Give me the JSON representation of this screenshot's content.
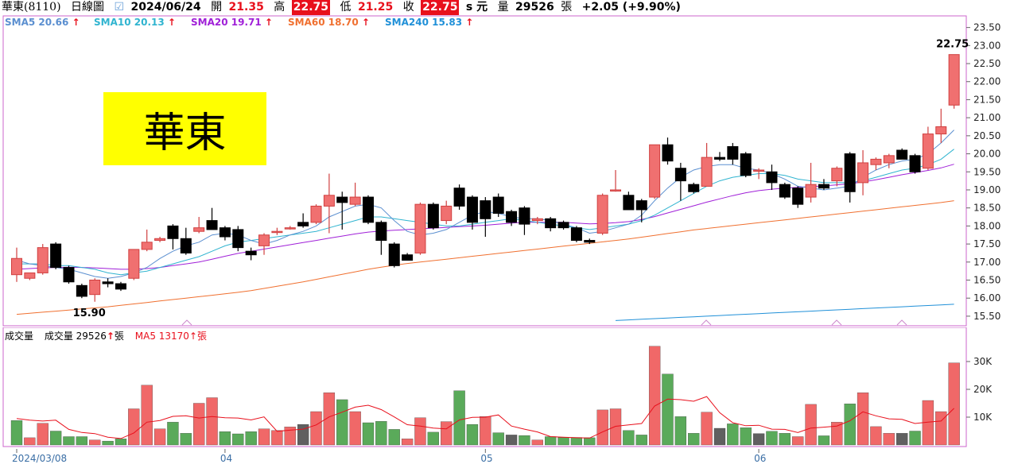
{
  "header": {
    "stock_name": "華東(8110)",
    "chart_type": "日線圖",
    "date": "2024/06/24",
    "open_label": "開",
    "open": "21.35",
    "high_label": "高",
    "high": "22.75",
    "low_label": "低",
    "low": "21.25",
    "close_label": "收",
    "close": "22.75",
    "currency": "s 元",
    "volume_label": "量",
    "volume": "29526",
    "volume_unit": "張",
    "change": "+2.05 (+9.90%)"
  },
  "tag": {
    "text": "華東"
  },
  "sma_legend": [
    {
      "label": "SMA5 20.66",
      "color": "#5b8fd0"
    },
    {
      "label": "SMA10 20.13",
      "color": "#30b4d0"
    },
    {
      "label": "SMA20 19.71",
      "color": "#a020d8"
    },
    {
      "label": "SMA60 18.70",
      "color": "#f07030"
    },
    {
      "label": "SMA240 15.83",
      "color": "#2090d8"
    }
  ],
  "volume_legend": {
    "title": "成交量",
    "volume": "成交量 29526",
    "volume_unit": "張",
    "ma5": "MA5 13170",
    "ma5_unit": "張"
  },
  "colors": {
    "up": "#f07070",
    "up_edge": "#d04040",
    "down": "#000000",
    "vol_up": "#f06868",
    "vol_down": "#5aaa5a",
    "vol_flat": "#606060",
    "frame": "#cc66cc"
  },
  "annotations": {
    "high_label": "22.75",
    "low_label": "15.90"
  },
  "chart_data": [
    {
      "type": "candlestick",
      "title": "華東(8110) 日線圖",
      "xlabel": "",
      "ylabel": "",
      "ylim": [
        15.3,
        23.8
      ],
      "y_ticks": [
        "15.50",
        "16.00",
        "16.50",
        "17.00",
        "17.50",
        "18.00",
        "18.50",
        "19.00",
        "19.50",
        "20.00",
        "20.50",
        "21.00",
        "21.50",
        "22.00",
        "22.50",
        "23.00",
        "23.50"
      ],
      "x_tick_labels": [
        {
          "index": 0,
          "label": "2024/03/08"
        },
        {
          "index": 16,
          "label": "04"
        },
        {
          "index": 36,
          "label": "05"
        },
        {
          "index": 57,
          "label": "06"
        }
      ],
      "ohlc": [
        [
          16.65,
          17.4,
          16.45,
          17.1
        ],
        [
          16.55,
          16.7,
          16.5,
          16.7
        ],
        [
          16.7,
          17.5,
          16.65,
          17.4
        ],
        [
          17.5,
          17.55,
          16.8,
          16.85
        ],
        [
          16.85,
          16.9,
          16.4,
          16.45
        ],
        [
          16.35,
          16.4,
          16.0,
          16.05
        ],
        [
          16.1,
          16.55,
          15.9,
          16.5
        ],
        [
          16.45,
          16.55,
          16.3,
          16.4
        ],
        [
          16.4,
          16.45,
          16.2,
          16.25
        ],
        [
          16.55,
          17.35,
          16.5,
          17.35
        ],
        [
          17.35,
          17.9,
          17.3,
          17.55
        ],
        [
          17.6,
          17.7,
          17.55,
          17.65
        ],
        [
          18.0,
          18.05,
          17.35,
          17.65
        ],
        [
          17.65,
          17.95,
          17.2,
          17.25
        ],
        [
          17.85,
          18.25,
          17.8,
          17.95
        ],
        [
          18.15,
          18.5,
          17.9,
          17.9
        ],
        [
          17.95,
          18.0,
          17.6,
          17.7
        ],
        [
          17.9,
          18.0,
          17.3,
          17.4
        ],
        [
          17.3,
          17.4,
          17.05,
          17.2
        ],
        [
          17.45,
          17.8,
          17.2,
          17.75
        ],
        [
          17.85,
          17.95,
          17.75,
          17.85
        ],
        [
          17.95,
          18.0,
          17.9,
          17.95
        ],
        [
          18.1,
          18.35,
          17.95,
          18.0
        ],
        [
          18.1,
          18.6,
          18.05,
          18.55
        ],
        [
          18.55,
          19.45,
          17.8,
          18.85
        ],
        [
          18.8,
          18.95,
          17.9,
          18.65
        ],
        [
          18.6,
          19.2,
          18.55,
          18.8
        ],
        [
          18.8,
          18.85,
          18.05,
          18.1
        ],
        [
          18.1,
          18.15,
          17.2,
          17.6
        ],
        [
          17.5,
          17.55,
          16.85,
          16.9
        ],
        [
          17.2,
          17.25,
          17.05,
          17.05
        ],
        [
          17.25,
          18.65,
          17.2,
          18.6
        ],
        [
          18.6,
          18.65,
          17.9,
          17.95
        ],
        [
          18.15,
          18.7,
          18.05,
          18.55
        ],
        [
          19.05,
          19.15,
          18.45,
          18.55
        ],
        [
          18.8,
          18.85,
          17.9,
          18.1
        ],
        [
          18.7,
          18.8,
          17.7,
          18.2
        ],
        [
          18.8,
          18.9,
          18.25,
          18.35
        ],
        [
          18.4,
          18.45,
          18.0,
          18.1
        ],
        [
          18.5,
          18.55,
          17.75,
          18.05
        ],
        [
          18.15,
          18.25,
          18.05,
          18.2
        ],
        [
          18.2,
          18.25,
          17.85,
          17.95
        ],
        [
          18.1,
          18.15,
          17.9,
          17.95
        ],
        [
          17.95,
          18.0,
          17.55,
          17.6
        ],
        [
          17.6,
          17.65,
          17.5,
          17.55
        ],
        [
          17.8,
          18.9,
          17.75,
          18.85
        ],
        [
          19.0,
          19.55,
          18.95,
          19.0
        ],
        [
          18.85,
          18.95,
          18.45,
          18.45
        ],
        [
          18.7,
          18.75,
          18.1,
          18.45
        ],
        [
          18.8,
          20.25,
          18.75,
          20.25
        ],
        [
          20.25,
          20.45,
          19.7,
          19.8
        ],
        [
          19.6,
          19.75,
          18.7,
          19.25
        ],
        [
          19.15,
          19.2,
          18.9,
          18.95
        ],
        [
          19.1,
          20.3,
          19.1,
          19.9
        ],
        [
          19.9,
          20.05,
          19.8,
          19.85
        ],
        [
          20.2,
          20.3,
          19.7,
          19.85
        ],
        [
          20.0,
          20.05,
          19.35,
          19.4
        ],
        [
          19.55,
          19.6,
          19.3,
          19.55
        ],
        [
          19.5,
          19.7,
          19.0,
          19.2
        ],
        [
          19.15,
          19.2,
          18.75,
          18.8
        ],
        [
          19.05,
          19.1,
          18.5,
          18.6
        ],
        [
          18.8,
          19.75,
          18.65,
          19.15
        ],
        [
          19.15,
          19.3,
          19.0,
          19.05
        ],
        [
          19.25,
          19.65,
          19.1,
          19.6
        ],
        [
          20.0,
          20.05,
          18.65,
          18.95
        ],
        [
          19.2,
          20.1,
          18.85,
          19.75
        ],
        [
          19.7,
          19.9,
          19.55,
          19.85
        ],
        [
          19.75,
          20.0,
          19.6,
          19.95
        ],
        [
          20.1,
          20.15,
          19.85,
          19.85
        ],
        [
          19.95,
          20.0,
          19.45,
          19.5
        ],
        [
          19.6,
          20.75,
          19.55,
          20.55
        ],
        [
          20.55,
          21.25,
          20.3,
          20.75
        ],
        [
          21.35,
          22.75,
          21.25,
          22.75
        ]
      ],
      "sma5": [
        17.05,
        16.95,
        16.9,
        16.85,
        16.8,
        16.7,
        16.6,
        16.55,
        16.6,
        16.7,
        16.85,
        17.1,
        17.3,
        17.45,
        17.55,
        17.75,
        17.8,
        17.75,
        17.6,
        17.5,
        17.6,
        17.75,
        17.85,
        18.0,
        18.25,
        18.4,
        18.55,
        18.6,
        18.5,
        18.15,
        17.85,
        17.75,
        17.8,
        17.9,
        18.1,
        18.3,
        18.4,
        18.35,
        18.25,
        18.2,
        18.2,
        18.15,
        18.05,
        17.95,
        17.8,
        17.85,
        17.95,
        18.05,
        18.3,
        18.7,
        19.05,
        19.35,
        19.55,
        19.65,
        19.7,
        19.7,
        19.6,
        19.55,
        19.45,
        19.3,
        19.1,
        19.05,
        19.0,
        19.05,
        19.1,
        19.35,
        19.55,
        19.7,
        19.8,
        19.85,
        20.0,
        20.3,
        20.66
      ],
      "sma10": [
        16.95,
        16.95,
        16.95,
        16.9,
        16.9,
        16.85,
        16.8,
        16.7,
        16.65,
        16.7,
        16.75,
        16.85,
        16.95,
        17.05,
        17.15,
        17.3,
        17.45,
        17.55,
        17.6,
        17.65,
        17.7,
        17.75,
        17.8,
        17.85,
        17.95,
        18.05,
        18.15,
        18.25,
        18.25,
        18.2,
        18.15,
        18.1,
        18.05,
        18.0,
        18.0,
        18.05,
        18.1,
        18.15,
        18.2,
        18.15,
        18.1,
        18.05,
        18.0,
        17.95,
        17.9,
        17.95,
        18.0,
        18.05,
        18.15,
        18.3,
        18.5,
        18.7,
        18.9,
        19.1,
        19.25,
        19.35,
        19.4,
        19.45,
        19.45,
        19.4,
        19.3,
        19.25,
        19.2,
        19.2,
        19.2,
        19.25,
        19.35,
        19.45,
        19.55,
        19.6,
        19.7,
        19.85,
        20.13
      ],
      "sma20": [
        16.8,
        16.82,
        16.84,
        16.85,
        16.86,
        16.85,
        16.84,
        16.82,
        16.8,
        16.8,
        16.82,
        16.85,
        16.9,
        16.95,
        17.0,
        17.08,
        17.16,
        17.24,
        17.3,
        17.36,
        17.42,
        17.48,
        17.54,
        17.6,
        17.66,
        17.72,
        17.78,
        17.83,
        17.86,
        17.88,
        17.9,
        17.92,
        17.94,
        17.96,
        17.98,
        18.0,
        18.02,
        18.05,
        18.08,
        18.1,
        18.1,
        18.1,
        18.1,
        18.08,
        18.06,
        18.07,
        18.09,
        18.12,
        18.18,
        18.26,
        18.36,
        18.46,
        18.56,
        18.66,
        18.75,
        18.84,
        18.92,
        18.98,
        19.02,
        19.05,
        19.07,
        19.09,
        19.11,
        19.14,
        19.17,
        19.22,
        19.28,
        19.35,
        19.42,
        19.48,
        19.54,
        19.61,
        19.71
      ],
      "sma60": [
        15.55,
        15.58,
        15.61,
        15.64,
        15.67,
        15.7,
        15.73,
        15.76,
        15.8,
        15.84,
        15.88,
        15.92,
        15.96,
        16.0,
        16.04,
        16.08,
        16.12,
        16.16,
        16.21,
        16.27,
        16.33,
        16.39,
        16.45,
        16.52,
        16.59,
        16.66,
        16.73,
        16.8,
        16.86,
        16.91,
        16.96,
        17.0,
        17.04,
        17.08,
        17.12,
        17.16,
        17.2,
        17.24,
        17.28,
        17.32,
        17.36,
        17.4,
        17.44,
        17.48,
        17.52,
        17.56,
        17.6,
        17.64,
        17.69,
        17.74,
        17.79,
        17.84,
        17.89,
        17.93,
        17.97,
        18.01,
        18.05,
        18.09,
        18.13,
        18.17,
        18.21,
        18.25,
        18.29,
        18.33,
        18.37,
        18.41,
        18.45,
        18.49,
        18.53,
        18.57,
        18.61,
        18.65,
        18.7
      ],
      "sma240_range": [
        15.38,
        15.83
      ]
    },
    {
      "type": "bar",
      "title": "成交量",
      "ylim": [
        0,
        36000
      ],
      "y_ticks": [
        "10K",
        "20K",
        "30K"
      ],
      "values": [
        8800,
        2600,
        7800,
        5000,
        3000,
        3000,
        1800,
        1400,
        2200,
        13000,
        21500,
        5800,
        8200,
        4200,
        15000,
        17000,
        4800,
        4000,
        4800,
        5800,
        5200,
        6500,
        7400,
        12000,
        18800,
        16300,
        12000,
        8000,
        8500,
        5600,
        2200,
        9800,
        4600,
        8400,
        19500,
        7400,
        10200,
        4400,
        3600,
        3400,
        1800,
        3000,
        2700,
        2700,
        2600,
        12600,
        13000,
        5200,
        3600,
        35500,
        25500,
        10200,
        4200,
        11800,
        6000,
        7600,
        6200,
        4100,
        4900,
        4200,
        3000,
        14600,
        3300,
        8200,
        14800,
        18800,
        6600,
        4200,
        4200,
        5000,
        16000,
        12000,
        29526
      ],
      "colors": [
        "g",
        "r",
        "r",
        "g",
        "g",
        "g",
        "r",
        "g",
        "g",
        "r",
        "r",
        "r",
        "g",
        "g",
        "r",
        "r",
        "g",
        "g",
        "g",
        "r",
        "r",
        "r",
        "d",
        "r",
        "r",
        "g",
        "r",
        "g",
        "g",
        "g",
        "r",
        "r",
        "g",
        "r",
        "g",
        "g",
        "r",
        "g",
        "d",
        "g",
        "r",
        "g",
        "g",
        "g",
        "g",
        "r",
        "r",
        "g",
        "g",
        "r",
        "g",
        "g",
        "g",
        "r",
        "d",
        "g",
        "g",
        "d",
        "g",
        "g",
        "r",
        "r",
        "g",
        "r",
        "g",
        "r",
        "r",
        "r",
        "d",
        "g",
        "r",
        "r",
        "r"
      ],
      "ma5": [
        9500,
        8900,
        8600,
        8900,
        5600,
        4500,
        4100,
        2800,
        2300,
        4300,
        8200,
        8800,
        10300,
        10500,
        9700,
        10200,
        9800,
        9700,
        9000,
        10100,
        4900,
        5300,
        5700,
        7200,
        10100,
        11800,
        13600,
        14300,
        12700,
        10100,
        7300,
        6800,
        6100,
        5800,
        9000,
        9900,
        10000,
        10800,
        6800,
        5700,
        4700,
        3000,
        2800,
        2600,
        2500,
        4700,
        6700,
        7200,
        7700,
        14000,
        16500,
        16300,
        15700,
        17400,
        11600,
        8000,
        6900,
        7100,
        5700,
        5600,
        4500,
        6100,
        6400,
        6800,
        8700,
        11900,
        10500,
        9400,
        9200,
        7700,
        8200,
        8600,
        13170
      ]
    }
  ]
}
